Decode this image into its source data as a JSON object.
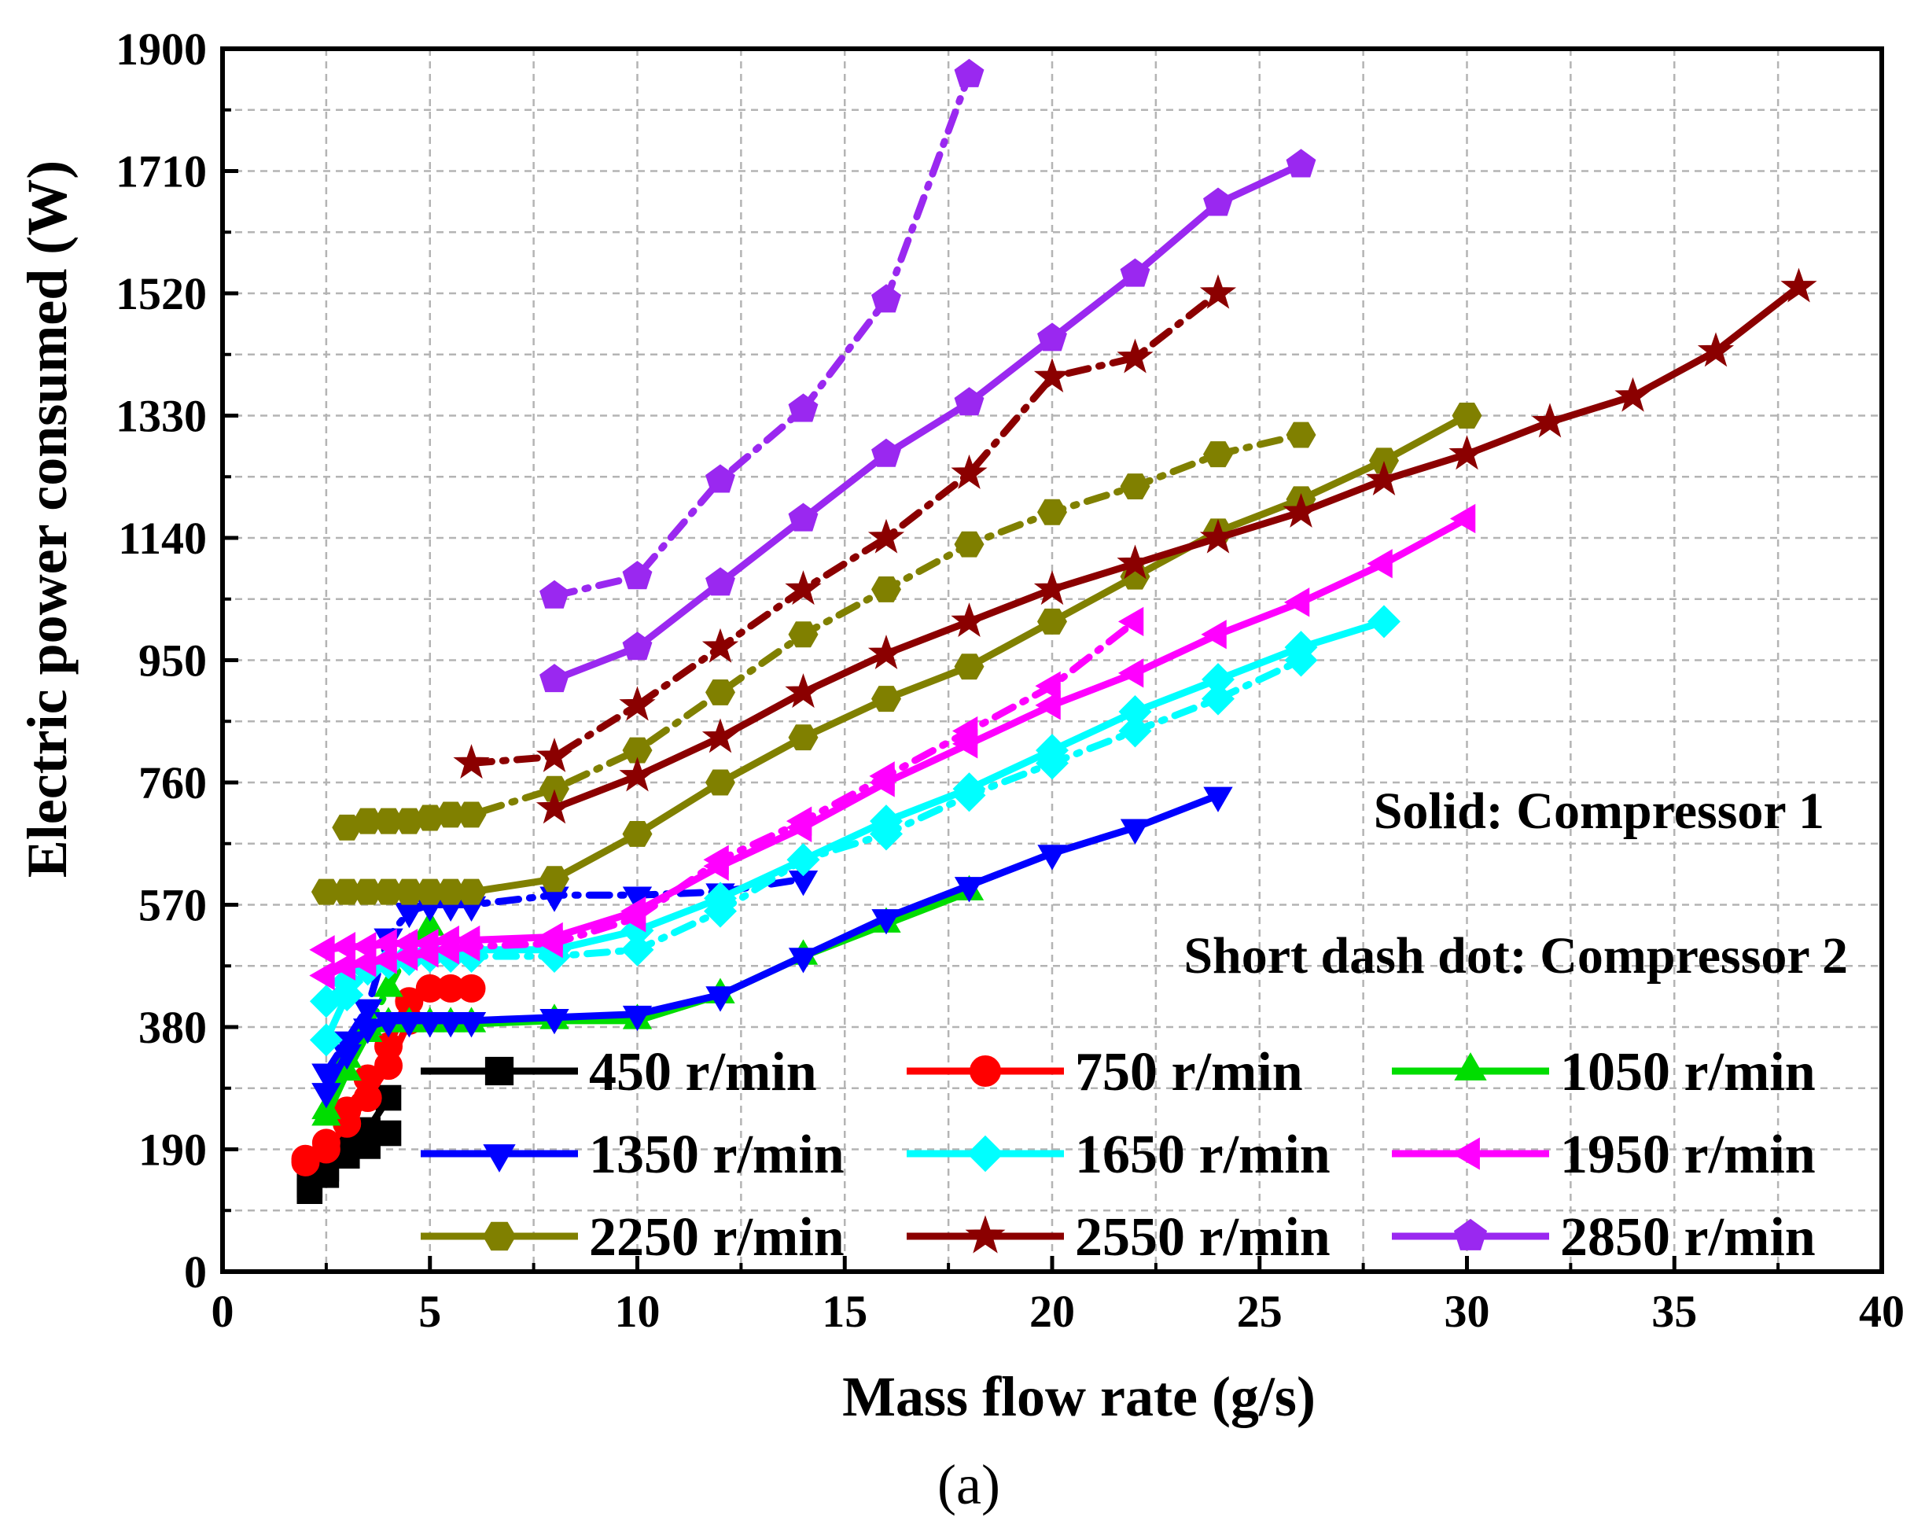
{
  "chart_data": {
    "type": "line",
    "title": "",
    "subtitle": "(a)",
    "xlabel": "Mass flow rate (g/s)",
    "ylabel": "Electric power consumed (W)",
    "xlim": [
      0,
      40
    ],
    "ylim": [
      0,
      1900
    ],
    "xticks": [
      "0",
      "5",
      "10",
      "15",
      "20",
      "25",
      "30",
      "35",
      "40"
    ],
    "yticks": [
      "0",
      "190",
      "380",
      "570",
      "760",
      "950",
      "1140",
      "1330",
      "1520",
      "1710",
      "1900"
    ],
    "grid": true,
    "annotations": [
      "Solid: Compressor 1",
      "Short dash dot: Compressor 2"
    ],
    "legend": [
      "450 r/min",
      "750 r/min",
      "1050 r/min",
      "1350 r/min",
      "1650 r/min",
      "1950 r/min",
      "2250 r/min",
      "2550 r/min",
      "2850 r/min"
    ],
    "series": [
      {
        "name": "450 r/min",
        "compressor": 1,
        "color": "#000000",
        "marker": "square",
        "x": [
          2.1,
          2.5,
          3.0,
          3.5,
          4.0
        ],
        "y": [
          125,
          150,
          180,
          195,
          215
        ]
      },
      {
        "name": "450 r/min",
        "compressor": 2,
        "color": "#000000",
        "marker": "square",
        "x": [
          2.1,
          2.5,
          3.0,
          3.5,
          4.0
        ],
        "y": [
          135,
          160,
          195,
          220,
          270
        ]
      },
      {
        "name": "750 r/min",
        "compressor": 1,
        "color": "#ff0000",
        "marker": "circle",
        "x": [
          2.0,
          2.5,
          3.0,
          3.5,
          4.0,
          4.5
        ],
        "y": [
          170,
          190,
          230,
          270,
          320,
          390
        ]
      },
      {
        "name": "750 r/min",
        "compressor": 2,
        "color": "#ff0000",
        "marker": "circle",
        "x": [
          2.0,
          2.5,
          3.0,
          3.5,
          4.0,
          4.5,
          5.0,
          5.5,
          6.0
        ],
        "y": [
          175,
          200,
          250,
          300,
          350,
          420,
          440,
          440,
          440
        ]
      },
      {
        "name": "1050 r/min",
        "compressor": 1,
        "color": "#00dd00",
        "marker": "triangle-up",
        "x": [
          2.5,
          3.0,
          3.5,
          4.0,
          4.5,
          5.0,
          5.5,
          6.0,
          8.0,
          10.0,
          12.0,
          14.0,
          16.0,
          18.0
        ],
        "y": [
          240,
          310,
          370,
          385,
          385,
          385,
          385,
          385,
          390,
          390,
          430,
          490,
          540,
          590
        ]
      },
      {
        "name": "1050 r/min",
        "compressor": 2,
        "color": "#00dd00",
        "marker": "triangle-up",
        "x": [
          2.5,
          3.0,
          3.5,
          4.0,
          4.5,
          5.0
        ],
        "y": [
          250,
          330,
          380,
          440,
          500,
          535
        ]
      },
      {
        "name": "1350 r/min",
        "compressor": 1,
        "color": "#0000ff",
        "marker": "triangle-down",
        "x": [
          2.5,
          3.0,
          3.5,
          4.0,
          4.5,
          5.0,
          5.5,
          6.0,
          8.0,
          10.0,
          12.0,
          14.0,
          16.0,
          18.0,
          20.0,
          22.0,
          24.0
        ],
        "y": [
          280,
          340,
          380,
          390,
          390,
          390,
          390,
          390,
          395,
          400,
          430,
          490,
          550,
          600,
          650,
          690,
          740
        ]
      },
      {
        "name": "1350 r/min",
        "compressor": 2,
        "color": "#0000ff",
        "marker": "triangle-down",
        "x": [
          2.5,
          3.0,
          3.5,
          4.0,
          4.5,
          5.0,
          5.5,
          6.0,
          8.0,
          10.0,
          12.0,
          14.0
        ],
        "y": [
          310,
          360,
          410,
          520,
          560,
          570,
          570,
          570,
          585,
          585,
          590,
          610
        ]
      },
      {
        "name": "1650 r/min",
        "compressor": 1,
        "color": "#00ffff",
        "marker": "diamond",
        "x": [
          2.5,
          3.0,
          3.5,
          4.0,
          4.5,
          5.0,
          5.5,
          6.0,
          8.0,
          10.0,
          12.0,
          14.0,
          16.0,
          18.0,
          20.0,
          22.0,
          24.0,
          26.0,
          28.0
        ],
        "y": [
          360,
          430,
          470,
          480,
          490,
          495,
          495,
          500,
          500,
          530,
          580,
          640,
          700,
          750,
          810,
          870,
          920,
          970,
          1010
        ]
      },
      {
        "name": "1650 r/min",
        "compressor": 2,
        "color": "#00ffff",
        "marker": "diamond",
        "x": [
          2.5,
          3.0,
          3.5,
          4.0,
          4.5,
          5.0,
          5.5,
          6.0,
          8.0,
          10.0,
          12.0,
          14.0,
          16.0,
          18.0,
          20.0,
          22.0,
          24.0,
          26.0
        ],
        "y": [
          420,
          450,
          470,
          480,
          485,
          490,
          490,
          490,
          490,
          500,
          560,
          640,
          680,
          740,
          790,
          840,
          890,
          950
        ]
      },
      {
        "name": "1950 r/min",
        "compressor": 1,
        "color": "#ff00ff",
        "marker": "triangle-left",
        "x": [
          2.5,
          3.0,
          3.5,
          4.0,
          4.5,
          5.0,
          5.5,
          6.0,
          8.0,
          10.0,
          12.0,
          14.0,
          16.0,
          18.0,
          20.0,
          22.0,
          24.0,
          26.0,
          28.0,
          30.0
        ],
        "y": [
          500,
          505,
          505,
          510,
          510,
          510,
          515,
          515,
          520,
          560,
          630,
          690,
          760,
          820,
          880,
          930,
          990,
          1040,
          1100,
          1170
        ]
      },
      {
        "name": "1950 r/min",
        "compressor": 2,
        "color": "#ff00ff",
        "marker": "triangle-left",
        "x": [
          2.5,
          3.0,
          3.5,
          4.0,
          4.5,
          5.0,
          5.5,
          6.0,
          8.0,
          10.0,
          12.0,
          14.0,
          16.0,
          18.0,
          20.0,
          22.0
        ],
        "y": [
          460,
          475,
          480,
          485,
          490,
          495,
          500,
          505,
          510,
          550,
          640,
          700,
          770,
          840,
          910,
          1010
        ]
      },
      {
        "name": "2250 r/min",
        "compressor": 1,
        "color": "#808000",
        "marker": "hexagon",
        "x": [
          2.5,
          3.0,
          3.5,
          4.0,
          4.5,
          5.0,
          5.5,
          6.0,
          8.0,
          10.0,
          12.0,
          14.0,
          16.0,
          18.0,
          20.0,
          22.0,
          24.0,
          26.0,
          28.0,
          30.0
        ],
        "y": [
          590,
          590,
          590,
          590,
          590,
          590,
          590,
          590,
          610,
          680,
          760,
          830,
          890,
          940,
          1010,
          1080,
          1150,
          1200,
          1260,
          1330
        ]
      },
      {
        "name": "2250 r/min",
        "compressor": 2,
        "color": "#808000",
        "marker": "hexagon",
        "x": [
          3.0,
          3.5,
          4.0,
          4.5,
          5.0,
          5.5,
          6.0,
          8.0,
          10.0,
          12.0,
          14.0,
          16.0,
          18.0,
          20.0,
          22.0,
          24.0,
          26.0
        ],
        "y": [
          690,
          700,
          700,
          700,
          705,
          710,
          710,
          750,
          810,
          900,
          990,
          1060,
          1130,
          1180,
          1220,
          1270,
          1300
        ]
      },
      {
        "name": "2550 r/min",
        "compressor": 1,
        "color": "#8b0000",
        "marker": "star",
        "x": [
          8.0,
          10.0,
          12.0,
          14.0,
          16.0,
          18.0,
          20.0,
          22.0,
          24.0,
          26.0,
          28.0,
          30.0,
          32.0,
          34.0,
          36.0,
          38.0
        ],
        "y": [
          720,
          770,
          830,
          900,
          960,
          1010,
          1060,
          1100,
          1140,
          1180,
          1230,
          1270,
          1320,
          1360,
          1430,
          1530
        ]
      },
      {
        "name": "2550 r/min",
        "compressor": 2,
        "color": "#8b0000",
        "marker": "star",
        "x": [
          6.0,
          8.0,
          10.0,
          12.0,
          14.0,
          16.0,
          18.0,
          20.0,
          22.0,
          24.0
        ],
        "y": [
          790,
          800,
          880,
          970,
          1060,
          1140,
          1240,
          1390,
          1420,
          1520
        ]
      },
      {
        "name": "2850 r/min",
        "compressor": 1,
        "color": "#9a28f0",
        "marker": "pentagon",
        "x": [
          8.0,
          10.0,
          12.0,
          14.0,
          16.0,
          18.0,
          20.0,
          22.0,
          24.0,
          26.0
        ],
        "y": [
          920,
          970,
          1070,
          1170,
          1270,
          1350,
          1450,
          1550,
          1660,
          1720
        ]
      },
      {
        "name": "2850 r/min",
        "compressor": 2,
        "color": "#9a28f0",
        "marker": "pentagon",
        "x": [
          8.0,
          10.0,
          12.0,
          14.0,
          16.0,
          18.0
        ],
        "y": [
          1050,
          1080,
          1230,
          1340,
          1510,
          1860
        ]
      }
    ]
  }
}
